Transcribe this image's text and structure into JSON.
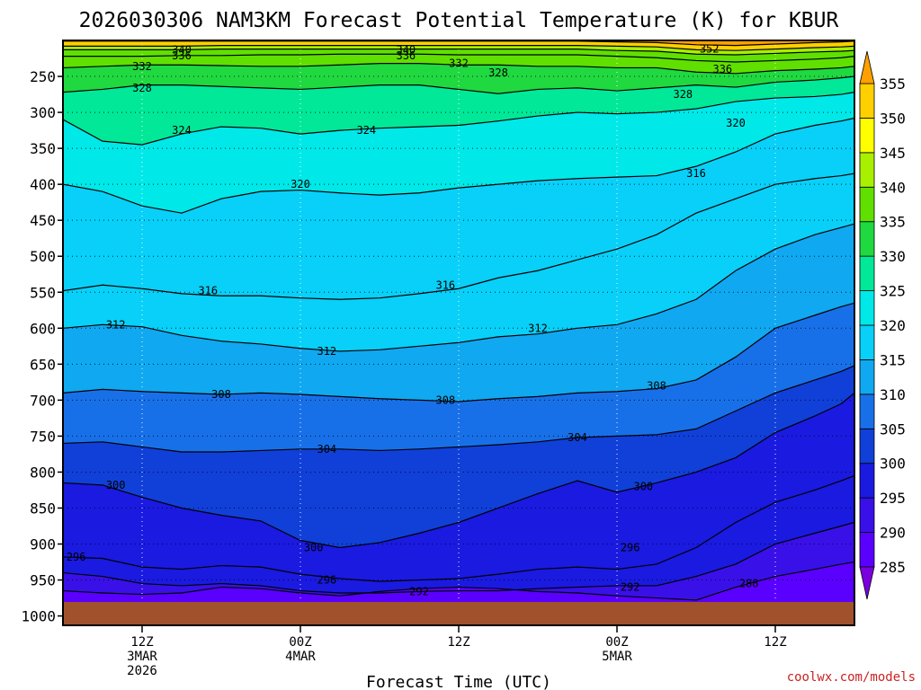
{
  "chart_data": {
    "type": "heatmap",
    "title": "2026030306 NAM3KM Forecast Potential Temperature (K) for KBUR",
    "xlabel": "Forecast Time (UTC)",
    "ylabel": "",
    "credit": "coolwx.com/models",
    "x_hours_range": [
      0,
      60
    ],
    "y_pressure_range": [
      200,
      1013
    ],
    "y_ticks": [
      250,
      300,
      350,
      400,
      450,
      500,
      550,
      600,
      650,
      700,
      750,
      800,
      850,
      900,
      950,
      1000
    ],
    "x_ticks": [
      {
        "hour": 6,
        "lines": [
          "12Z",
          "3MAR",
          "2026"
        ]
      },
      {
        "hour": 18,
        "lines": [
          "00Z",
          "4MAR"
        ]
      },
      {
        "hour": 30,
        "lines": [
          "12Z"
        ]
      },
      {
        "hour": 42,
        "lines": [
          "00Z",
          "5MAR"
        ]
      },
      {
        "hour": 54,
        "lines": [
          "12Z"
        ]
      }
    ],
    "colorbar": {
      "levels": [
        285,
        290,
        295,
        300,
        305,
        310,
        315,
        320,
        325,
        330,
        335,
        340,
        345,
        350,
        355
      ],
      "colors": [
        "#7a00e0",
        "#5a00ff",
        "#3a10e8",
        "#1a1ae0",
        "#1040d8",
        "#1870e8",
        "#10a8f0",
        "#08d0f8",
        "#00e8e8",
        "#00e898",
        "#20d840",
        "#60e000",
        "#a8f000",
        "#ffff00",
        "#ffd000",
        "#ffa000"
      ],
      "labels": [
        "285",
        "290",
        "295",
        "300",
        "305",
        "310",
        "315",
        "320",
        "325",
        "330",
        "335",
        "340",
        "345",
        "350",
        "355"
      ]
    },
    "contours": [
      {
        "level": 288,
        "pressure": [
          965,
          968,
          970,
          968,
          960,
          962,
          968,
          972,
          966,
          962,
          960,
          962,
          966,
          968,
          972,
          975,
          978,
          960,
          945,
          935,
          928,
          925
        ]
      },
      {
        "level": 292,
        "pressure": [
          940,
          945,
          955,
          958,
          955,
          958,
          965,
          968,
          968,
          966,
          965,
          965,
          962,
          960,
          958,
          958,
          945,
          928,
          900,
          885,
          875,
          870
        ]
      },
      {
        "level": 296,
        "pressure": [
          918,
          920,
          932,
          935,
          930,
          932,
          942,
          948,
          952,
          950,
          948,
          942,
          935,
          932,
          935,
          928,
          905,
          870,
          842,
          825,
          812,
          805
        ]
      },
      {
        "level": 300,
        "pressure": [
          815,
          818,
          835,
          850,
          860,
          868,
          895,
          905,
          898,
          885,
          870,
          850,
          830,
          812,
          828,
          815,
          800,
          780,
          745,
          722,
          705,
          690
        ]
      },
      {
        "level": 304,
        "pressure": [
          760,
          758,
          765,
          772,
          772,
          770,
          768,
          768,
          770,
          768,
          765,
          762,
          758,
          752,
          750,
          748,
          740,
          715,
          690,
          672,
          660,
          652
        ]
      },
      {
        "level": 308,
        "pressure": [
          690,
          685,
          688,
          690,
          692,
          690,
          692,
          695,
          698,
          700,
          702,
          698,
          695,
          690,
          688,
          684,
          672,
          640,
          600,
          582,
          570,
          565
        ]
      },
      {
        "level": 312,
        "pressure": [
          600,
          595,
          598,
          610,
          618,
          622,
          628,
          632,
          630,
          625,
          620,
          612,
          608,
          600,
          595,
          580,
          560,
          520,
          490,
          470,
          460,
          455
        ]
      },
      {
        "level": 316,
        "pressure": [
          548,
          540,
          545,
          552,
          555,
          555,
          558,
          560,
          558,
          552,
          545,
          530,
          520,
          505,
          490,
          470,
          440,
          420,
          400,
          392,
          388,
          385
        ]
      },
      {
        "level": 320,
        "pressure": [
          400,
          410,
          430,
          440,
          420,
          410,
          408,
          412,
          415,
          412,
          405,
          400,
          395,
          392,
          390,
          388,
          375,
          355,
          330,
          318,
          312,
          308
        ]
      },
      {
        "level": 324,
        "pressure": [
          310,
          340,
          345,
          330,
          320,
          322,
          330,
          325,
          322,
          320,
          318,
          312,
          305,
          300,
          302,
          300,
          295,
          285,
          280,
          278,
          275,
          272
        ]
      },
      {
        "level": 328,
        "pressure": [
          272,
          268,
          262,
          262,
          264,
          266,
          268,
          265,
          262,
          262,
          268,
          274,
          268,
          266,
          270,
          266,
          262,
          265,
          258,
          255,
          252,
          250
        ]
      },
      {
        "level": 332,
        "pressure": [
          238,
          236,
          234,
          234,
          235,
          236,
          236,
          234,
          232,
          232,
          234,
          234,
          236,
          236,
          238,
          238,
          244,
          246,
          242,
          240,
          238,
          236
        ]
      },
      {
        "level": 336,
        "pressure": [
          222,
          222,
          222,
          221,
          221,
          220,
          220,
          219,
          219,
          219,
          220,
          220,
          220,
          220,
          222,
          224,
          228,
          230,
          228,
          226,
          224,
          222
        ]
      },
      {
        "level": 340,
        "pressure": [
          213,
          213,
          213,
          213,
          212,
          212,
          212,
          212,
          212,
          212,
          212,
          212,
          212,
          212,
          214,
          215,
          219,
          220,
          218,
          216,
          215,
          214
        ]
      },
      {
        "level": 344,
        "pressure": [
          208,
          208,
          208,
          208,
          207,
          207,
          207,
          207,
          207,
          207,
          207,
          207,
          207,
          207,
          208,
          209,
          213,
          214,
          212,
          210,
          209,
          208
        ]
      },
      {
        "level": 352,
        "pressure": [
          201,
          201,
          201,
          201,
          201,
          201,
          201,
          201,
          201,
          201,
          201,
          201,
          201,
          201,
          202,
          203,
          206,
          207,
          205,
          203,
          202,
          201
        ]
      }
    ],
    "contour_hours": [
      0,
      3,
      6,
      9,
      12,
      15,
      18,
      21,
      24,
      27,
      30,
      33,
      36,
      39,
      42,
      45,
      48,
      51,
      54,
      57,
      59,
      60
    ],
    "contour_labels": [
      {
        "level": 340,
        "hour": 9,
        "pressure": 213
      },
      {
        "level": 340,
        "hour": 26,
        "pressure": 213
      },
      {
        "level": 336,
        "hour": 9,
        "pressure": 221
      },
      {
        "level": 336,
        "hour": 26,
        "pressure": 221
      },
      {
        "level": 352,
        "hour": 49,
        "pressure": 212
      },
      {
        "level": 332,
        "hour": 6,
        "pressure": 236
      },
      {
        "level": 332,
        "hour": 30,
        "pressure": 232
      },
      {
        "level": 336,
        "hour": 50,
        "pressure": 240
      },
      {
        "level": 328,
        "hour": 6,
        "pressure": 266
      },
      {
        "level": 328,
        "hour": 33,
        "pressure": 245
      },
      {
        "level": 328,
        "hour": 47,
        "pressure": 275
      },
      {
        "level": 324,
        "hour": 9,
        "pressure": 325
      },
      {
        "level": 324,
        "hour": 23,
        "pressure": 325
      },
      {
        "level": 320,
        "hour": 51,
        "pressure": 315
      },
      {
        "level": 320,
        "hour": 18,
        "pressure": 400
      },
      {
        "level": 316,
        "hour": 48,
        "pressure": 385
      },
      {
        "level": 316,
        "hour": 11,
        "pressure": 548
      },
      {
        "level": 316,
        "hour": 29,
        "pressure": 540
      },
      {
        "level": 312,
        "hour": 4,
        "pressure": 595
      },
      {
        "level": 312,
        "hour": 20,
        "pressure": 632
      },
      {
        "level": 312,
        "hour": 36,
        "pressure": 600
      },
      {
        "level": 308,
        "hour": 12,
        "pressure": 692
      },
      {
        "level": 308,
        "hour": 29,
        "pressure": 700
      },
      {
        "level": 308,
        "hour": 45,
        "pressure": 680
      },
      {
        "level": 304,
        "hour": 20,
        "pressure": 768
      },
      {
        "level": 304,
        "hour": 39,
        "pressure": 752
      },
      {
        "level": 300,
        "hour": 4,
        "pressure": 818
      },
      {
        "level": 300,
        "hour": 19,
        "pressure": 905
      },
      {
        "level": 300,
        "hour": 44,
        "pressure": 820
      },
      {
        "level": 296,
        "hour": 1,
        "pressure": 918
      },
      {
        "level": 296,
        "hour": 20,
        "pressure": 950
      },
      {
        "level": 296,
        "hour": 43,
        "pressure": 905
      },
      {
        "level": 292,
        "hour": 27,
        "pressure": 966
      },
      {
        "level": 292,
        "hour": 43,
        "pressure": 960
      },
      {
        "level": 288,
        "hour": 52,
        "pressure": 955
      }
    ]
  }
}
